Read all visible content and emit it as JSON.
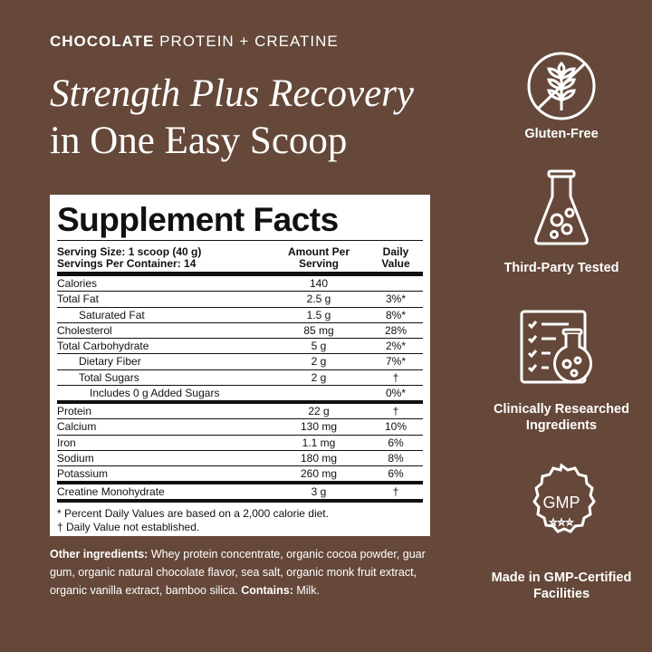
{
  "eyebrow": {
    "bold": "CHOCOLATE",
    "rest": " PROTEIN + CREATINE"
  },
  "headline": {
    "line1": "Strength Plus Recovery",
    "line2": "in One Easy Scoop"
  },
  "label": {
    "title": "Supplement Facts",
    "serving_size": "Serving Size: 1 scoop (40 g)",
    "servings_per_container": "Servings Per Container: 14",
    "col_amount": "Amount Per Serving",
    "col_dv": "Daily Value",
    "rows": [
      {
        "name": "Calories",
        "amount": "140",
        "dv": ""
      },
      {
        "name": "Total Fat",
        "amount": "2.5 g",
        "dv": "3%*"
      },
      {
        "name": "Saturated Fat",
        "amount": "1.5 g",
        "dv": "8%*"
      },
      {
        "name": "Cholesterol",
        "amount": "85 mg",
        "dv": "28%"
      },
      {
        "name": "Total Carbohydrate",
        "amount": "5 g",
        "dv": "2%*"
      },
      {
        "name": "Dietary Fiber",
        "amount": "2 g",
        "dv": "7%*"
      },
      {
        "name": "Total Sugars",
        "amount": "2 g",
        "dv": "†"
      },
      {
        "name": "Includes 0 g Added Sugars",
        "amount": "",
        "dv": "0%*"
      },
      {
        "name": "Protein",
        "amount": "22 g",
        "dv": "†"
      },
      {
        "name": "Calcium",
        "amount": "130 mg",
        "dv": "10%"
      },
      {
        "name": "Iron",
        "amount": "1.1 mg",
        "dv": "6%"
      },
      {
        "name": "Sodium",
        "amount": "180 mg",
        "dv": "8%"
      },
      {
        "name": "Potassium",
        "amount": "260 mg",
        "dv": "6%"
      },
      {
        "name": "Creatine Monohydrate",
        "amount": "3 g",
        "dv": "†"
      }
    ],
    "footnote1": "* Percent Daily Values are based on a 2,000 calorie diet.",
    "footnote2": "† Daily Value not established."
  },
  "other_ingredients": {
    "label": "Other ingredients:",
    "text": " Whey protein concentrate, organic cocoa powder, guar gum, organic natural chocolate flavor, sea salt, organic monk fruit extract, organic vanilla extract, bamboo silica. ",
    "contains_label": "Contains:",
    "contains": " Milk."
  },
  "badges": [
    {
      "icon": "no-wheat-icon",
      "label": "Gluten-Free"
    },
    {
      "icon": "flask-icon",
      "label": "Third-Party Tested"
    },
    {
      "icon": "clipboard-flask-icon",
      "label": "Clinically Researched Ingredients"
    },
    {
      "icon": "gmp-seal-icon",
      "label": "Made in GMP-Certified Facilities",
      "seal_text": "GMP"
    }
  ]
}
